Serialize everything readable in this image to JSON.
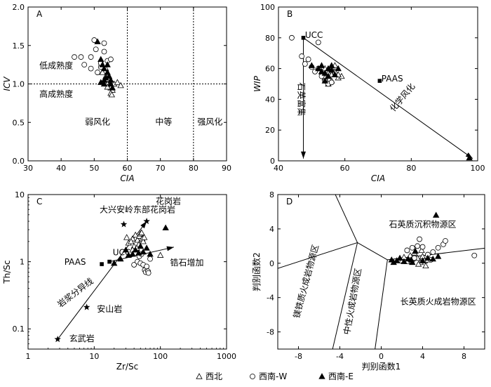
{
  "chart_data": [
    {
      "type": "scatter",
      "panel": "A",
      "xlabel": "CIA",
      "ylabel": "ICV",
      "xlim": [
        30,
        90
      ],
      "ylim": [
        0,
        2.0
      ],
      "xticks": [
        30,
        40,
        50,
        60,
        70,
        80,
        90
      ],
      "yticks": [
        0,
        0.5,
        1.0,
        1.5,
        2.0
      ],
      "ytick_labels": [
        "0.0",
        "0.5",
        "1.0",
        "1.5",
        "2.0"
      ],
      "reference_lines": [
        {
          "axis": "y",
          "value": 1.0
        },
        {
          "axis": "x",
          "value": 60
        },
        {
          "axis": "x",
          "value": 80
        }
      ],
      "annotations": [
        {
          "text": "低成熟度",
          "x": 38.5,
          "y": 1.2
        },
        {
          "text": "高成熟度",
          "x": 38.5,
          "y": 0.83
        },
        {
          "text": "弱风化",
          "x": 51,
          "y": 0.47
        },
        {
          "text": "中等",
          "x": 71,
          "y": 0.47
        },
        {
          "text": "强风化",
          "x": 85,
          "y": 0.47
        }
      ],
      "series": [
        {
          "name": "西北",
          "marker": "open-triangle",
          "points": [
            [
              52.5,
              1.15
            ],
            [
              53,
              1.05
            ],
            [
              53.5,
              1.1
            ],
            [
              54,
              1.0
            ],
            [
              54.5,
              0.98
            ],
            [
              55,
              0.95
            ],
            [
              55.5,
              0.92
            ],
            [
              55,
              0.88
            ],
            [
              54,
              0.96
            ],
            [
              53.5,
              1.2
            ],
            [
              56,
              1.0
            ],
            [
              57,
              1.02
            ],
            [
              58,
              0.98
            ],
            [
              55.3,
              0.86
            ]
          ]
        },
        {
          "name": "西南-W",
          "marker": "open-circle",
          "points": [
            [
              44,
              1.35
            ],
            [
              46,
              1.35
            ],
            [
              47,
              1.25
            ],
            [
              49,
              1.2
            ],
            [
              50,
              1.57
            ],
            [
              50.5,
              1.45
            ],
            [
              52,
              1.22
            ],
            [
              52,
              1.27
            ],
            [
              53,
              1.53
            ],
            [
              53,
              1.42
            ],
            [
              54,
              1.3
            ],
            [
              55,
              1.32
            ],
            [
              51,
              1.15
            ],
            [
              49,
              1.35
            ]
          ]
        },
        {
          "name": "西南-E",
          "marker": "filled-triangle",
          "points": [
            [
              51,
              1.55
            ],
            [
              52,
              1.32
            ],
            [
              52.5,
              1.25
            ],
            [
              53,
              1.2
            ],
            [
              53,
              1.05
            ],
            [
              54,
              1.15
            ],
            [
              54.5,
              1.1
            ],
            [
              55,
              1.05
            ],
            [
              53,
              1.0
            ],
            [
              52,
              1.02
            ],
            [
              54,
              1.25
            ],
            [
              55,
              1.0
            ],
            [
              55.5,
              0.95
            ],
            [
              53.5,
              1.08
            ]
          ]
        }
      ]
    },
    {
      "type": "scatter",
      "panel": "B",
      "xlabel": "CIA",
      "ylabel": "WIP",
      "xlim": [
        40,
        100
      ],
      "ylim": [
        0,
        100
      ],
      "xticks": [
        40,
        60,
        80,
        100
      ],
      "yticks": [
        0,
        20,
        40,
        60,
        80,
        100
      ],
      "annotations": [
        {
          "text": "UCC",
          "x": 48,
          "y": 80
        },
        {
          "text": "PAAS",
          "x": 71,
          "y": 51.5
        },
        {
          "text": "石英富集",
          "x": 46,
          "y": 40
        },
        {
          "text": "化学风化",
          "x": 78,
          "y": 40
        }
      ],
      "reference_points": [
        {
          "name": "UCC",
          "x": 47.5,
          "y": 80
        },
        {
          "name": "PAAS",
          "x": 70.5,
          "y": 52
        }
      ],
      "trend_lines": [
        {
          "from": [
            47.5,
            80
          ],
          "to": [
            98.5,
            1.5
          ]
        },
        {
          "from": [
            47.5,
            80
          ],
          "to": [
            47.5,
            1.5
          ]
        }
      ],
      "series": [
        {
          "name": "西北",
          "marker": "open-triangle",
          "points": [
            [
              54,
              60
            ],
            [
              55,
              57
            ],
            [
              56,
              56
            ],
            [
              57,
              58
            ],
            [
              58,
              54
            ],
            [
              56,
              52
            ],
            [
              55,
              55
            ],
            [
              57,
              62
            ],
            [
              59,
              55
            ],
            [
              53,
              58
            ],
            [
              54,
              54
            ],
            [
              56,
              60
            ],
            [
              58,
              56
            ],
            [
              55,
              50
            ]
          ]
        },
        {
          "name": "西南-W",
          "marker": "open-circle",
          "points": [
            [
              44,
              80
            ],
            [
              47,
              68
            ],
            [
              48,
              63
            ],
            [
              50,
              61
            ],
            [
              52,
              77
            ],
            [
              52,
              60
            ],
            [
              54,
              52
            ],
            [
              55,
              50
            ],
            [
              53,
              55
            ],
            [
              51,
              58
            ],
            [
              56,
              51
            ],
            [
              49,
              66
            ]
          ]
        },
        {
          "name": "西南-E",
          "marker": "filled-triangle",
          "points": [
            [
              50,
              62
            ],
            [
              52,
              60
            ],
            [
              53,
              58
            ],
            [
              54,
              57
            ],
            [
              55,
              60
            ],
            [
              56,
              59
            ],
            [
              55,
              55
            ],
            [
              54,
              52
            ],
            [
              57,
              56
            ],
            [
              58,
              60
            ],
            [
              53,
              62
            ],
            [
              56,
              62
            ],
            [
              97.5,
              2
            ]
          ]
        }
      ]
    },
    {
      "type": "scatter",
      "panel": "C",
      "xlabel": "Zr/Sc",
      "ylabel": "Th/Sc",
      "xscale": "log",
      "yscale": "log",
      "xlim": [
        1,
        1000
      ],
      "ylim": [
        0.05,
        10
      ],
      "xticks": [
        1,
        10,
        100,
        1000
      ],
      "yticks": [
        0.1,
        1,
        10
      ],
      "ytick_labels": [
        "0.1",
        "1",
        "10"
      ],
      "annotations": [
        {
          "text": "大兴安岭东部花岗岩",
          "x": 45,
          "y": 5.4
        },
        {
          "text": "花岗岩",
          "x": 85,
          "y": 7.2
        },
        {
          "text": "UCC",
          "x": 26,
          "y": 1.25
        },
        {
          "text": "PAAS",
          "x": 7.5,
          "y": 0.9
        },
        {
          "text": "锆石增加",
          "x": 140,
          "y": 0.88
        },
        {
          "text": "岩浆分异线",
          "x": 5.5,
          "y": 0.32
        },
        {
          "text": "安山岩",
          "x": 11,
          "y": 0.18
        },
        {
          "text": "玄武岩",
          "x": 4.2,
          "y": 0.065
        }
      ],
      "reference_points": [
        {
          "name": "玄武岩",
          "x": 2.8,
          "y": 0.07,
          "marker": "star"
        },
        {
          "name": "安山岩",
          "x": 7.7,
          "y": 0.21,
          "marker": "star"
        },
        {
          "name": "UCC",
          "x": 17,
          "y": 1.0,
          "marker": "square"
        },
        {
          "name": "PAAS",
          "x": 13,
          "y": 0.92,
          "marker": "square"
        },
        {
          "name": "花岗岩",
          "x": 62,
          "y": 4.0,
          "marker": "star"
        },
        {
          "name": "大兴安岭东部花岗岩",
          "x": 28,
          "y": 3.6,
          "marker": "star"
        }
      ],
      "trend_lines": [
        {
          "from": [
            2.8,
            0.07
          ],
          "to": [
            62,
            4.0
          ]
        },
        {
          "from": [
            17,
            1.0
          ],
          "to": [
            160,
            1.65
          ]
        }
      ],
      "series": [
        {
          "name": "西北",
          "marker": "open-triangle",
          "points": [
            [
              33,
              1.9
            ],
            [
              38,
              2.2
            ],
            [
              42,
              2.5
            ],
            [
              45,
              2.1
            ],
            [
              48,
              2.4
            ],
            [
              50,
              2.6
            ],
            [
              53,
              2.2
            ],
            [
              55,
              2.0
            ],
            [
              40,
              1.7
            ],
            [
              36,
              2.0
            ],
            [
              47,
              1.8
            ],
            [
              52,
              2.7
            ],
            [
              31,
              2.3
            ],
            [
              44,
              1.6
            ],
            [
              57,
              2.3
            ],
            [
              38,
              1.5
            ],
            [
              100,
              1.25
            ]
          ]
        },
        {
          "name": "西南-W",
          "marker": "open-circle",
          "points": [
            [
              40,
              0.9
            ],
            [
              45,
              1.0
            ],
            [
              50,
              0.95
            ],
            [
              55,
              0.9
            ],
            [
              58,
              0.75
            ],
            [
              60,
              0.7
            ],
            [
              65,
              0.72
            ],
            [
              62,
              0.85
            ],
            [
              70,
              1.1
            ],
            [
              48,
              1.2
            ],
            [
              52,
              1.3
            ],
            [
              66,
              0.68
            ]
          ]
        },
        {
          "name": "西南-E",
          "marker": "filled-triangle",
          "points": [
            [
              20,
              0.95
            ],
            [
              25,
              1.1
            ],
            [
              33,
              1.25
            ],
            [
              38,
              1.3
            ],
            [
              42,
              1.5
            ],
            [
              47,
              1.35
            ],
            [
              55,
              1.4
            ],
            [
              62,
              1.6
            ],
            [
              30,
              1.5
            ],
            [
              50,
              1.7
            ],
            [
              120,
              3.2
            ],
            [
              70,
              1.3
            ]
          ]
        }
      ]
    },
    {
      "type": "scatter",
      "panel": "D",
      "xlabel": "判别函数1",
      "ylabel": "判别函数2",
      "xlim": [
        -10,
        10
      ],
      "ylim": [
        -10,
        8
      ],
      "xticks": [
        -8,
        -4,
        0,
        4,
        8
      ],
      "yticks": [
        -8,
        -4,
        0,
        4,
        8
      ],
      "annotations": [
        {
          "text": "石英质沉积物源区",
          "x": 4,
          "y": 4.2
        },
        {
          "text": "镁铁质火成岩物源区",
          "x": -7,
          "y": -2.2
        },
        {
          "text": "中性火成岩物源区",
          "x": -2.5,
          "y": -4.5
        },
        {
          "text": "长英质火成岩物源区",
          "x": 5.5,
          "y": -4.8
        }
      ],
      "boundaries": [
        {
          "from": [
            -5.2,
            10
          ],
          "to": [
            -2.3,
            2.4
          ]
        },
        {
          "from": [
            -2.3,
            2.4
          ],
          "to": [
            -10,
            -0.6
          ]
        },
        {
          "from": [
            -2.3,
            2.4
          ],
          "to": [
            0.6,
            0.4
          ]
        },
        {
          "from": [
            0.6,
            0.4
          ],
          "to": [
            10,
            1.75
          ]
        },
        {
          "from": [
            0.6,
            0.4
          ],
          "to": [
            -0.6,
            -10
          ]
        },
        {
          "from": [
            -2.3,
            2.4
          ],
          "to": [
            -4.7,
            -10
          ]
        }
      ],
      "series": [
        {
          "name": "西北",
          "marker": "open-triangle",
          "points": [
            [
              2.0,
              0.3
            ],
            [
              2.5,
              0.2
            ],
            [
              3.0,
              0.5
            ],
            [
              3.5,
              0.6
            ],
            [
              3.8,
              0.1
            ],
            [
              4.0,
              0.8
            ],
            [
              4.2,
              0.3
            ],
            [
              4.5,
              0.4
            ],
            [
              3.2,
              1.2
            ],
            [
              2.8,
              0.9
            ],
            [
              3.6,
              -0.1
            ],
            [
              4.3,
              -0.3
            ],
            [
              3.9,
              1.5
            ],
            [
              2.2,
              0.7
            ]
          ]
        },
        {
          "name": "西南-W",
          "marker": "open-circle",
          "points": [
            [
              2.5,
              1.5
            ],
            [
              3.0,
              1.8
            ],
            [
              3.5,
              2.0
            ],
            [
              4.0,
              1.9
            ],
            [
              3.7,
              2.8
            ],
            [
              4.5,
              1.0
            ],
            [
              5.0,
              1.3
            ],
            [
              5.5,
              1.8
            ],
            [
              6.0,
              2.2
            ],
            [
              6.2,
              2.6
            ],
            [
              9.0,
              0.9
            ],
            [
              3.2,
              0.6
            ],
            [
              4.8,
              0.4
            ]
          ]
        },
        {
          "name": "西南-E",
          "marker": "filled-triangle",
          "points": [
            [
              1.0,
              0.4
            ],
            [
              1.5,
              0.3
            ],
            [
              1.8,
              0.6
            ],
            [
              2.2,
              0.2
            ],
            [
              2.6,
              0.5
            ],
            [
              3.0,
              0.1
            ],
            [
              4.0,
              0.3
            ],
            [
              4.5,
              0.6
            ],
            [
              5.0,
              0.5
            ],
            [
              5.5,
              0.8
            ],
            [
              3.3,
              1.4
            ],
            [
              5.3,
              5.6
            ],
            [
              1.2,
              0.1
            ],
            [
              2.9,
              0.4
            ]
          ]
        }
      ]
    }
  ],
  "legend": {
    "placement": "bottom-center",
    "items": [
      {
        "label": "西北",
        "marker": "open-triangle"
      },
      {
        "label": "西南-W",
        "marker": "open-circle"
      },
      {
        "label": "西南-E",
        "marker": "filled-triangle"
      }
    ]
  }
}
